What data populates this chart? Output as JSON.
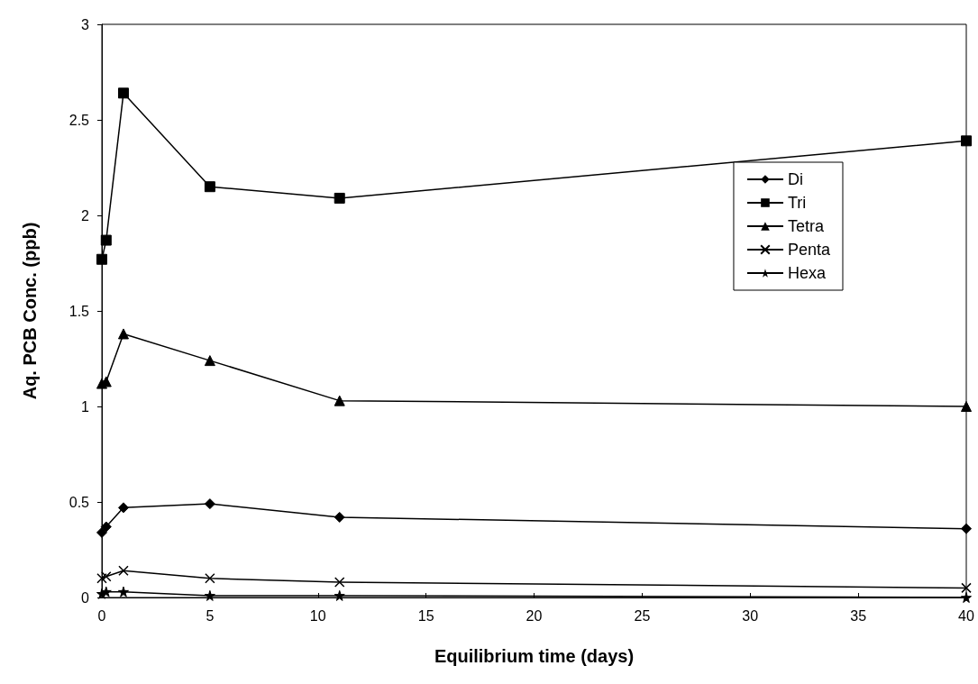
{
  "chart_data": {
    "type": "line",
    "xlabel": "Equilibrium time (days)",
    "ylabel": "Aq. PCB Conc. (ppb)",
    "x": [
      0,
      0.2,
      1,
      5,
      11,
      40
    ],
    "series": [
      {
        "name": "Di",
        "color": "#000000",
        "marker": "diamond",
        "values": [
          0.34,
          0.37,
          0.47,
          0.49,
          0.42,
          0.36
        ]
      },
      {
        "name": "Tri",
        "color": "#000000",
        "marker": "square",
        "values": [
          1.77,
          1.87,
          2.64,
          2.15,
          2.09,
          2.39
        ]
      },
      {
        "name": "Tetra",
        "color": "#000000",
        "marker": "triangle",
        "values": [
          1.12,
          1.13,
          1.38,
          1.24,
          1.03,
          1.0
        ]
      },
      {
        "name": "Penta",
        "color": "#000000",
        "marker": "cross",
        "values": [
          0.1,
          0.11,
          0.14,
          0.1,
          0.08,
          0.05
        ]
      },
      {
        "name": "Hexa",
        "color": "#000000",
        "marker": "star",
        "values": [
          0.02,
          0.03,
          0.03,
          0.01,
          0.01,
          0.0
        ]
      }
    ],
    "xlim": [
      0,
      40
    ],
    "xticks": [
      0,
      5,
      10,
      15,
      20,
      25,
      30,
      35,
      40
    ],
    "ylim": [
      0,
      3
    ],
    "yticks": [
      0,
      0.5,
      1,
      1.5,
      2,
      2.5,
      3
    ],
    "grid": false,
    "legend": "right",
    "line_style": "solid"
  }
}
